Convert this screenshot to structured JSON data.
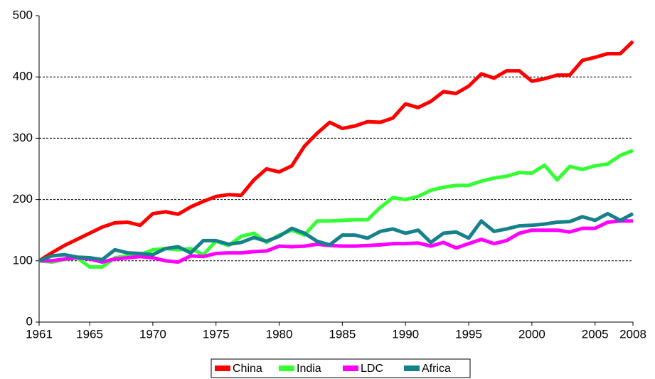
{
  "chart_data": {
    "type": "line",
    "x": [
      1961,
      1962,
      1963,
      1964,
      1965,
      1966,
      1967,
      1968,
      1969,
      1970,
      1971,
      1972,
      1973,
      1974,
      1975,
      1976,
      1977,
      1978,
      1979,
      1980,
      1981,
      1982,
      1983,
      1984,
      1985,
      1986,
      1987,
      1988,
      1989,
      1990,
      1991,
      1992,
      1993,
      1994,
      1995,
      1996,
      1997,
      1998,
      1999,
      2000,
      2001,
      2002,
      2003,
      2004,
      2005,
      2006,
      2007,
      2008
    ],
    "series": [
      {
        "name": "China",
        "color": "#ff0000",
        "values": [
          100,
          113,
          125,
          135,
          145,
          155,
          162,
          163,
          158,
          177,
          180,
          176,
          188,
          197,
          205,
          208,
          207,
          232,
          250,
          245,
          255,
          287,
          308,
          326,
          316,
          320,
          327,
          326,
          333,
          356,
          350,
          360,
          376,
          373,
          385,
          405,
          398,
          410,
          410,
          393,
          397,
          403,
          403,
          427,
          432,
          438,
          438,
          458
        ]
      },
      {
        "name": "India",
        "color": "#33ff33",
        "values": [
          100,
          98,
          102,
          105,
          90,
          90,
          105,
          108,
          110,
          118,
          120,
          118,
          120,
          110,
          132,
          125,
          140,
          145,
          130,
          142,
          150,
          142,
          165,
          165,
          166,
          167,
          167,
          187,
          203,
          200,
          205,
          215,
          220,
          223,
          223,
          230,
          235,
          238,
          244,
          243,
          256,
          232,
          254,
          249,
          255,
          258,
          272,
          280
        ]
      },
      {
        "name": "LDC",
        "color": "#ff00ff",
        "values": [
          100,
          100,
          103,
          105,
          103,
          98,
          103,
          105,
          107,
          105,
          100,
          98,
          108,
          107,
          112,
          113,
          113,
          115,
          116,
          124,
          123,
          124,
          127,
          125,
          124,
          124,
          125,
          126,
          128,
          128,
          129,
          124,
          130,
          121,
          128,
          135,
          128,
          133,
          145,
          150,
          150,
          150,
          147,
          153,
          153,
          163,
          165,
          165
        ]
      },
      {
        "name": "Africa",
        "color": "#15818b",
        "values": [
          100,
          108,
          110,
          106,
          105,
          102,
          118,
          113,
          112,
          110,
          120,
          123,
          113,
          133,
          133,
          127,
          130,
          138,
          132,
          140,
          153,
          145,
          132,
          126,
          142,
          142,
          137,
          148,
          152,
          145,
          150,
          130,
          145,
          147,
          137,
          165,
          148,
          152,
          157,
          158,
          160,
          163,
          164,
          172,
          166,
          177,
          166,
          177
        ]
      }
    ],
    "xlim": [
      1961,
      2008
    ],
    "xticks": [
      1961,
      1965,
      1970,
      1975,
      1980,
      1985,
      1990,
      1995,
      2000,
      2005,
      2008
    ],
    "ylim": [
      0,
      500
    ],
    "yticks": [
      0,
      100,
      200,
      300,
      400,
      500
    ],
    "grid": true,
    "legend": "bottom"
  }
}
